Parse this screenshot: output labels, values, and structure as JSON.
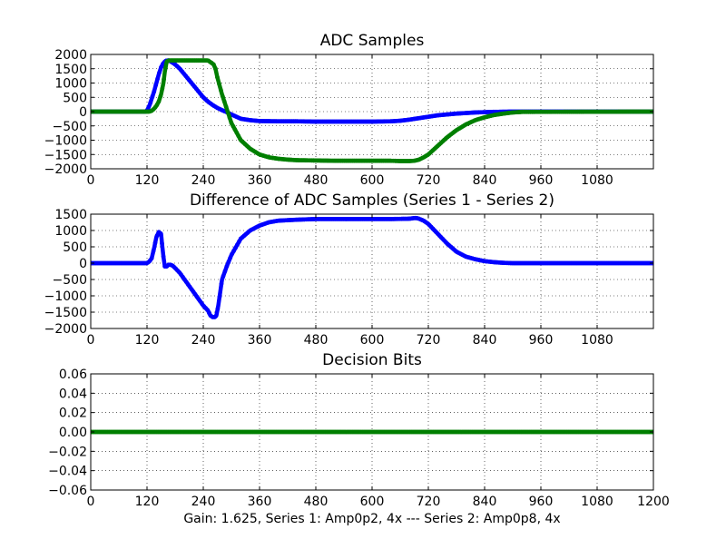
{
  "figure": {
    "caption": "Gain: 1.625, Series 1: Amp0p2, 4x --- Series 2: Amp0p8, 4x"
  },
  "colors": {
    "series_blue": "#0000ff",
    "series_green": "#007f00",
    "grid": "#000000",
    "background": "#ffffff"
  },
  "chart_data": [
    {
      "type": "scatter",
      "title": "ADC Samples",
      "xlabel": "",
      "ylabel": "",
      "xlim": [
        0,
        1200
      ],
      "ylim": [
        -2000,
        2000
      ],
      "xticks": [
        0,
        120,
        240,
        360,
        480,
        600,
        720,
        840,
        960,
        1080
      ],
      "yticks": [
        -2000,
        -1500,
        -1000,
        -500,
        0,
        500,
        1000,
        1500,
        2000
      ],
      "grid": true,
      "series": [
        {
          "color": "#0000ff",
          "x": [
            0,
            118,
            122,
            126,
            130,
            135,
            140,
            145,
            150,
            155,
            160,
            165,
            170,
            180,
            190,
            200,
            210,
            220,
            230,
            240,
            250,
            260,
            270,
            280,
            290,
            300,
            320,
            340,
            360,
            400,
            440,
            480,
            520,
            560,
            600,
            640,
            660,
            680,
            700,
            720,
            740,
            760,
            780,
            800,
            820,
            840,
            860,
            880,
            900,
            920,
            960,
            1200
          ],
          "y": [
            0,
            0,
            100,
            250,
            450,
            700,
            1000,
            1300,
            1550,
            1700,
            1780,
            1790,
            1760,
            1650,
            1500,
            1300,
            1100,
            900,
            700,
            500,
            350,
            230,
            130,
            50,
            -20,
            -100,
            -250,
            -300,
            -330,
            -340,
            -340,
            -350,
            -350,
            -350,
            -350,
            -340,
            -320,
            -280,
            -230,
            -180,
            -130,
            -100,
            -70,
            -50,
            -30,
            -20,
            -10,
            -5,
            0,
            0,
            0,
            0
          ]
        },
        {
          "color": "#007f00",
          "x": [
            0,
            125,
            130,
            135,
            140,
            145,
            150,
            155,
            158,
            162,
            166,
            170,
            200,
            230,
            240,
            250,
            258,
            262,
            266,
            270,
            275,
            280,
            290,
            300,
            310,
            320,
            340,
            360,
            380,
            400,
            420,
            440,
            480,
            520,
            560,
            600,
            640,
            660,
            680,
            690,
            695,
            700,
            710,
            720,
            740,
            760,
            780,
            800,
            820,
            840,
            860,
            880,
            900,
            920,
            1200
          ],
          "y": [
            0,
            0,
            30,
            100,
            200,
            350,
            600,
            1000,
            1400,
            1750,
            1790,
            1790,
            1790,
            1790,
            1790,
            1790,
            1700,
            1650,
            1500,
            1200,
            900,
            600,
            100,
            -400,
            -700,
            -1000,
            -1300,
            -1500,
            -1600,
            -1650,
            -1680,
            -1700,
            -1710,
            -1720,
            -1720,
            -1720,
            -1720,
            -1730,
            -1730,
            -1720,
            -1700,
            -1680,
            -1600,
            -1500,
            -1200,
            -900,
            -650,
            -450,
            -300,
            -200,
            -120,
            -70,
            -30,
            -10,
            0
          ]
        }
      ]
    },
    {
      "type": "scatter",
      "title": "Difference of ADC Samples (Series 1 - Series 2)",
      "xlabel": "",
      "ylabel": "",
      "xlim": [
        0,
        1200
      ],
      "ylim": [
        -2000,
        1500
      ],
      "xticks": [
        0,
        120,
        240,
        360,
        480,
        600,
        720,
        840,
        960,
        1080
      ],
      "yticks": [
        -2000,
        -1500,
        -1000,
        -500,
        0,
        500,
        1000,
        1500
      ],
      "grid": true,
      "series": [
        {
          "color": "#0000ff",
          "x": [
            0,
            115,
            120,
            125,
            130,
            135,
            140,
            145,
            150,
            152,
            155,
            158,
            162,
            166,
            170,
            175,
            180,
            190,
            200,
            210,
            220,
            230,
            240,
            250,
            255,
            260,
            265,
            268,
            272,
            276,
            280,
            290,
            300,
            310,
            320,
            340,
            360,
            380,
            400,
            440,
            480,
            520,
            560,
            600,
            640,
            680,
            690,
            695,
            700,
            710,
            720,
            740,
            760,
            780,
            800,
            820,
            840,
            860,
            880,
            900,
            920,
            960,
            1200
          ],
          "y": [
            0,
            0,
            0,
            50,
            150,
            450,
            800,
            950,
            900,
            600,
            200,
            -100,
            -100,
            -50,
            -50,
            -80,
            -150,
            -300,
            -500,
            -700,
            -900,
            -1100,
            -1300,
            -1450,
            -1600,
            -1650,
            -1650,
            -1600,
            -1300,
            -900,
            -500,
            -100,
            250,
            500,
            750,
            1000,
            1150,
            1250,
            1300,
            1330,
            1350,
            1350,
            1350,
            1350,
            1350,
            1360,
            1380,
            1380,
            1360,
            1300,
            1200,
            900,
            600,
            350,
            200,
            120,
            60,
            30,
            10,
            0,
            0,
            0,
            0
          ]
        }
      ]
    },
    {
      "type": "scatter",
      "title": "Decision Bits",
      "xlabel": "Gain: 1.625, Series 1: Amp0p2, 4x --- Series 2: Amp0p8, 4x",
      "ylabel": "",
      "xlim": [
        0,
        1200
      ],
      "ylim": [
        -0.06,
        0.06
      ],
      "xticks": [
        0,
        120,
        240,
        360,
        480,
        600,
        720,
        840,
        960,
        1080,
        1200
      ],
      "yticks": [
        -0.06,
        -0.04,
        -0.02,
        0.0,
        0.02,
        0.04,
        0.06
      ],
      "ytick_labels": [
        "−0.06",
        "−0.04",
        "−0.02",
        "0.00",
        "0.02",
        "0.04",
        "0.06"
      ],
      "grid": true,
      "series": [
        {
          "color": "#007f00",
          "x": [
            0,
            1200
          ],
          "y": [
            0,
            0
          ]
        }
      ]
    }
  ]
}
